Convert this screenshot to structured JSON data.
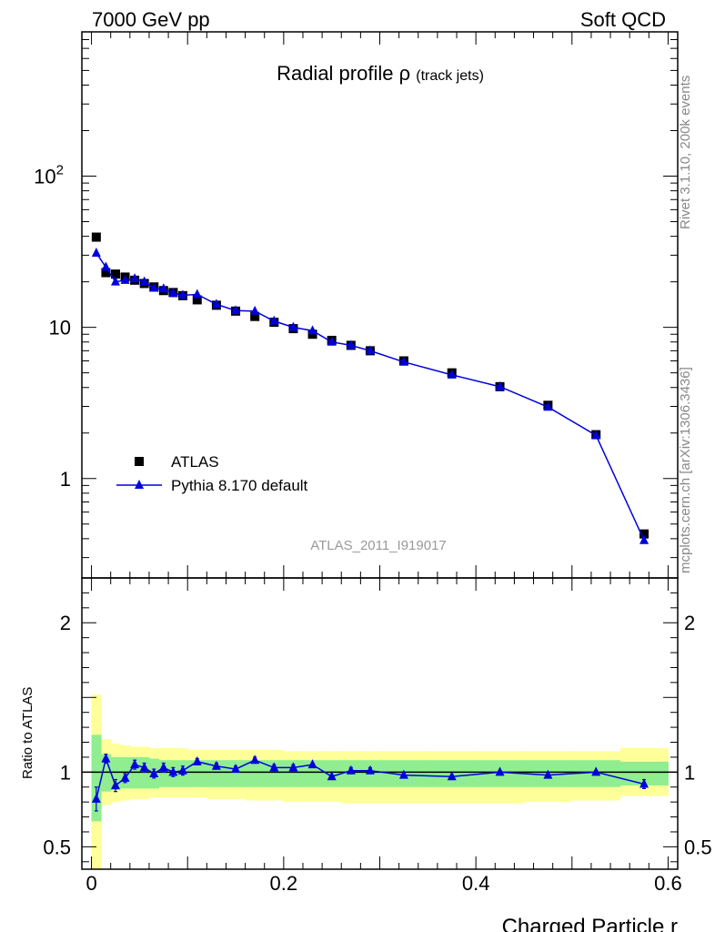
{
  "header": {
    "left": "7000 GeV pp",
    "right": "Soft QCD"
  },
  "side_labels": {
    "rivet": "Rivet 3.1.10,  200k events",
    "mcplots": "mcplots.cern.ch [arXiv:1306.3436]"
  },
  "chart_data": [
    {
      "type": "scatter",
      "title": "Radial profile",
      "title_symbol": "ρ",
      "title_sub": "(track jets)",
      "watermark": "ATLAS_2011_I919017",
      "xlabel": "Charged Particle r",
      "ylabel": "",
      "yscale": "log",
      "xlim": [
        -0.01,
        0.61
      ],
      "ylim": [
        0.22,
        900
      ],
      "y_ticks": [
        {
          "value": 100,
          "label": "10",
          "sup": "2"
        },
        {
          "value": 10,
          "label": "10",
          "sup": ""
        },
        {
          "value": 1,
          "label": "1",
          "sup": ""
        }
      ],
      "legend_position": "lower-left",
      "x": [
        0.005,
        0.015,
        0.025,
        0.035,
        0.045,
        0.055,
        0.065,
        0.075,
        0.085,
        0.095,
        0.11,
        0.13,
        0.15,
        0.17,
        0.19,
        0.21,
        0.23,
        0.25,
        0.27,
        0.29,
        0.325,
        0.375,
        0.425,
        0.475,
        0.525,
        0.575
      ],
      "series": [
        {
          "name": "ATLAS",
          "marker": "square",
          "color": "#000000",
          "values": [
            39.5,
            23.0,
            22.5,
            21.5,
            20.5,
            19.5,
            18.5,
            17.5,
            17.0,
            16.2,
            15.2,
            14.0,
            12.8,
            11.8,
            10.8,
            9.8,
            9.0,
            8.2,
            7.6,
            7.0,
            6.0,
            5.0,
            4.05,
            3.05,
            1.95,
            0.43
          ]
        },
        {
          "name": "Pythia 8.170 default",
          "marker": "triangle",
          "color": "#0000dd",
          "values": [
            31.0,
            25.0,
            20.0,
            20.5,
            21.0,
            20.0,
            18.2,
            18.0,
            16.8,
            16.3,
            16.5,
            14.2,
            12.9,
            12.8,
            11.0,
            10.0,
            9.5,
            8.0,
            7.6,
            7.0,
            5.9,
            4.85,
            4.05,
            2.97,
            1.93,
            0.39
          ]
        }
      ]
    },
    {
      "type": "line",
      "title": "",
      "xlabel": "Charged Particle r",
      "ylabel": "Ratio to ATLAS",
      "xlim": [
        -0.01,
        0.61
      ],
      "ylim": [
        0.35,
        2.3
      ],
      "x_ticks": [
        0,
        0.2,
        0.4,
        0.6
      ],
      "x_tick_labels": [
        "0",
        "0.2",
        "0.4",
        "0.6"
      ],
      "y_ticks": [
        0.5,
        1,
        2
      ],
      "y_tick_labels": [
        "0.5",
        "1",
        "2"
      ],
      "reference_line": 1,
      "bin_edges": [
        0,
        0.01,
        0.02,
        0.03,
        0.04,
        0.05,
        0.06,
        0.07,
        0.08,
        0.09,
        0.1,
        0.12,
        0.14,
        0.16,
        0.18,
        0.2,
        0.22,
        0.24,
        0.26,
        0.28,
        0.3,
        0.35,
        0.4,
        0.45,
        0.5,
        0.55,
        0.6
      ],
      "band_inner": [
        [
          0.67,
          1.25
        ],
        [
          0.87,
          1.12
        ],
        [
          0.88,
          1.1
        ],
        [
          0.89,
          1.1
        ],
        [
          0.89,
          1.1
        ],
        [
          0.89,
          1.1
        ],
        [
          0.89,
          1.09
        ],
        [
          0.9,
          1.08
        ],
        [
          0.9,
          1.08
        ],
        [
          0.9,
          1.08
        ],
        [
          0.9,
          1.08
        ],
        [
          0.9,
          1.08
        ],
        [
          0.9,
          1.08
        ],
        [
          0.9,
          1.08
        ],
        [
          0.9,
          1.08
        ],
        [
          0.9,
          1.08
        ],
        [
          0.9,
          1.08
        ],
        [
          0.9,
          1.08
        ],
        [
          0.9,
          1.08
        ],
        [
          0.9,
          1.08
        ],
        [
          0.9,
          1.08
        ],
        [
          0.9,
          1.08
        ],
        [
          0.9,
          1.08
        ],
        [
          0.9,
          1.08
        ],
        [
          0.9,
          1.08
        ],
        [
          0.91,
          1.07
        ]
      ],
      "band_outer": [
        [
          0.35,
          1.52
        ],
        [
          0.78,
          1.22
        ],
        [
          0.8,
          1.19
        ],
        [
          0.81,
          1.18
        ],
        [
          0.82,
          1.17
        ],
        [
          0.82,
          1.17
        ],
        [
          0.83,
          1.16
        ],
        [
          0.83,
          1.16
        ],
        [
          0.83,
          1.16
        ],
        [
          0.83,
          1.16
        ],
        [
          0.83,
          1.15
        ],
        [
          0.82,
          1.15
        ],
        [
          0.82,
          1.15
        ],
        [
          0.81,
          1.15
        ],
        [
          0.81,
          1.15
        ],
        [
          0.8,
          1.14
        ],
        [
          0.8,
          1.14
        ],
        [
          0.8,
          1.14
        ],
        [
          0.79,
          1.14
        ],
        [
          0.79,
          1.14
        ],
        [
          0.79,
          1.14
        ],
        [
          0.79,
          1.14
        ],
        [
          0.79,
          1.14
        ],
        [
          0.8,
          1.14
        ],
        [
          0.81,
          1.14
        ],
        [
          0.84,
          1.16
        ]
      ],
      "band_colors": {
        "inner": "#90ee90",
        "outer": "#ffff99"
      },
      "x": [
        0.005,
        0.015,
        0.025,
        0.035,
        0.045,
        0.055,
        0.065,
        0.075,
        0.085,
        0.095,
        0.11,
        0.13,
        0.15,
        0.17,
        0.19,
        0.21,
        0.23,
        0.25,
        0.27,
        0.29,
        0.325,
        0.375,
        0.425,
        0.475,
        0.525,
        0.575
      ],
      "series": [
        {
          "name": "Pythia 8.170 default",
          "color": "#0000dd",
          "values": [
            0.82,
            1.09,
            0.91,
            0.96,
            1.05,
            1.03,
            0.99,
            1.03,
            1.0,
            1.01,
            1.07,
            1.04,
            1.02,
            1.08,
            1.03,
            1.03,
            1.05,
            0.97,
            1.01,
            1.01,
            0.98,
            0.97,
            1.0,
            0.98,
            1.0,
            0.92
          ],
          "errors": [
            0.08,
            0.03,
            0.04,
            0.03,
            0.03,
            0.03,
            0.03,
            0.03,
            0.03,
            0.03,
            0.02,
            0.02,
            0.02,
            0.02,
            0.02,
            0.02,
            0.01,
            0.01,
            0.02,
            0.02,
            0.01,
            0.01,
            0.01,
            0.01,
            0.01,
            0.03
          ]
        }
      ]
    }
  ]
}
